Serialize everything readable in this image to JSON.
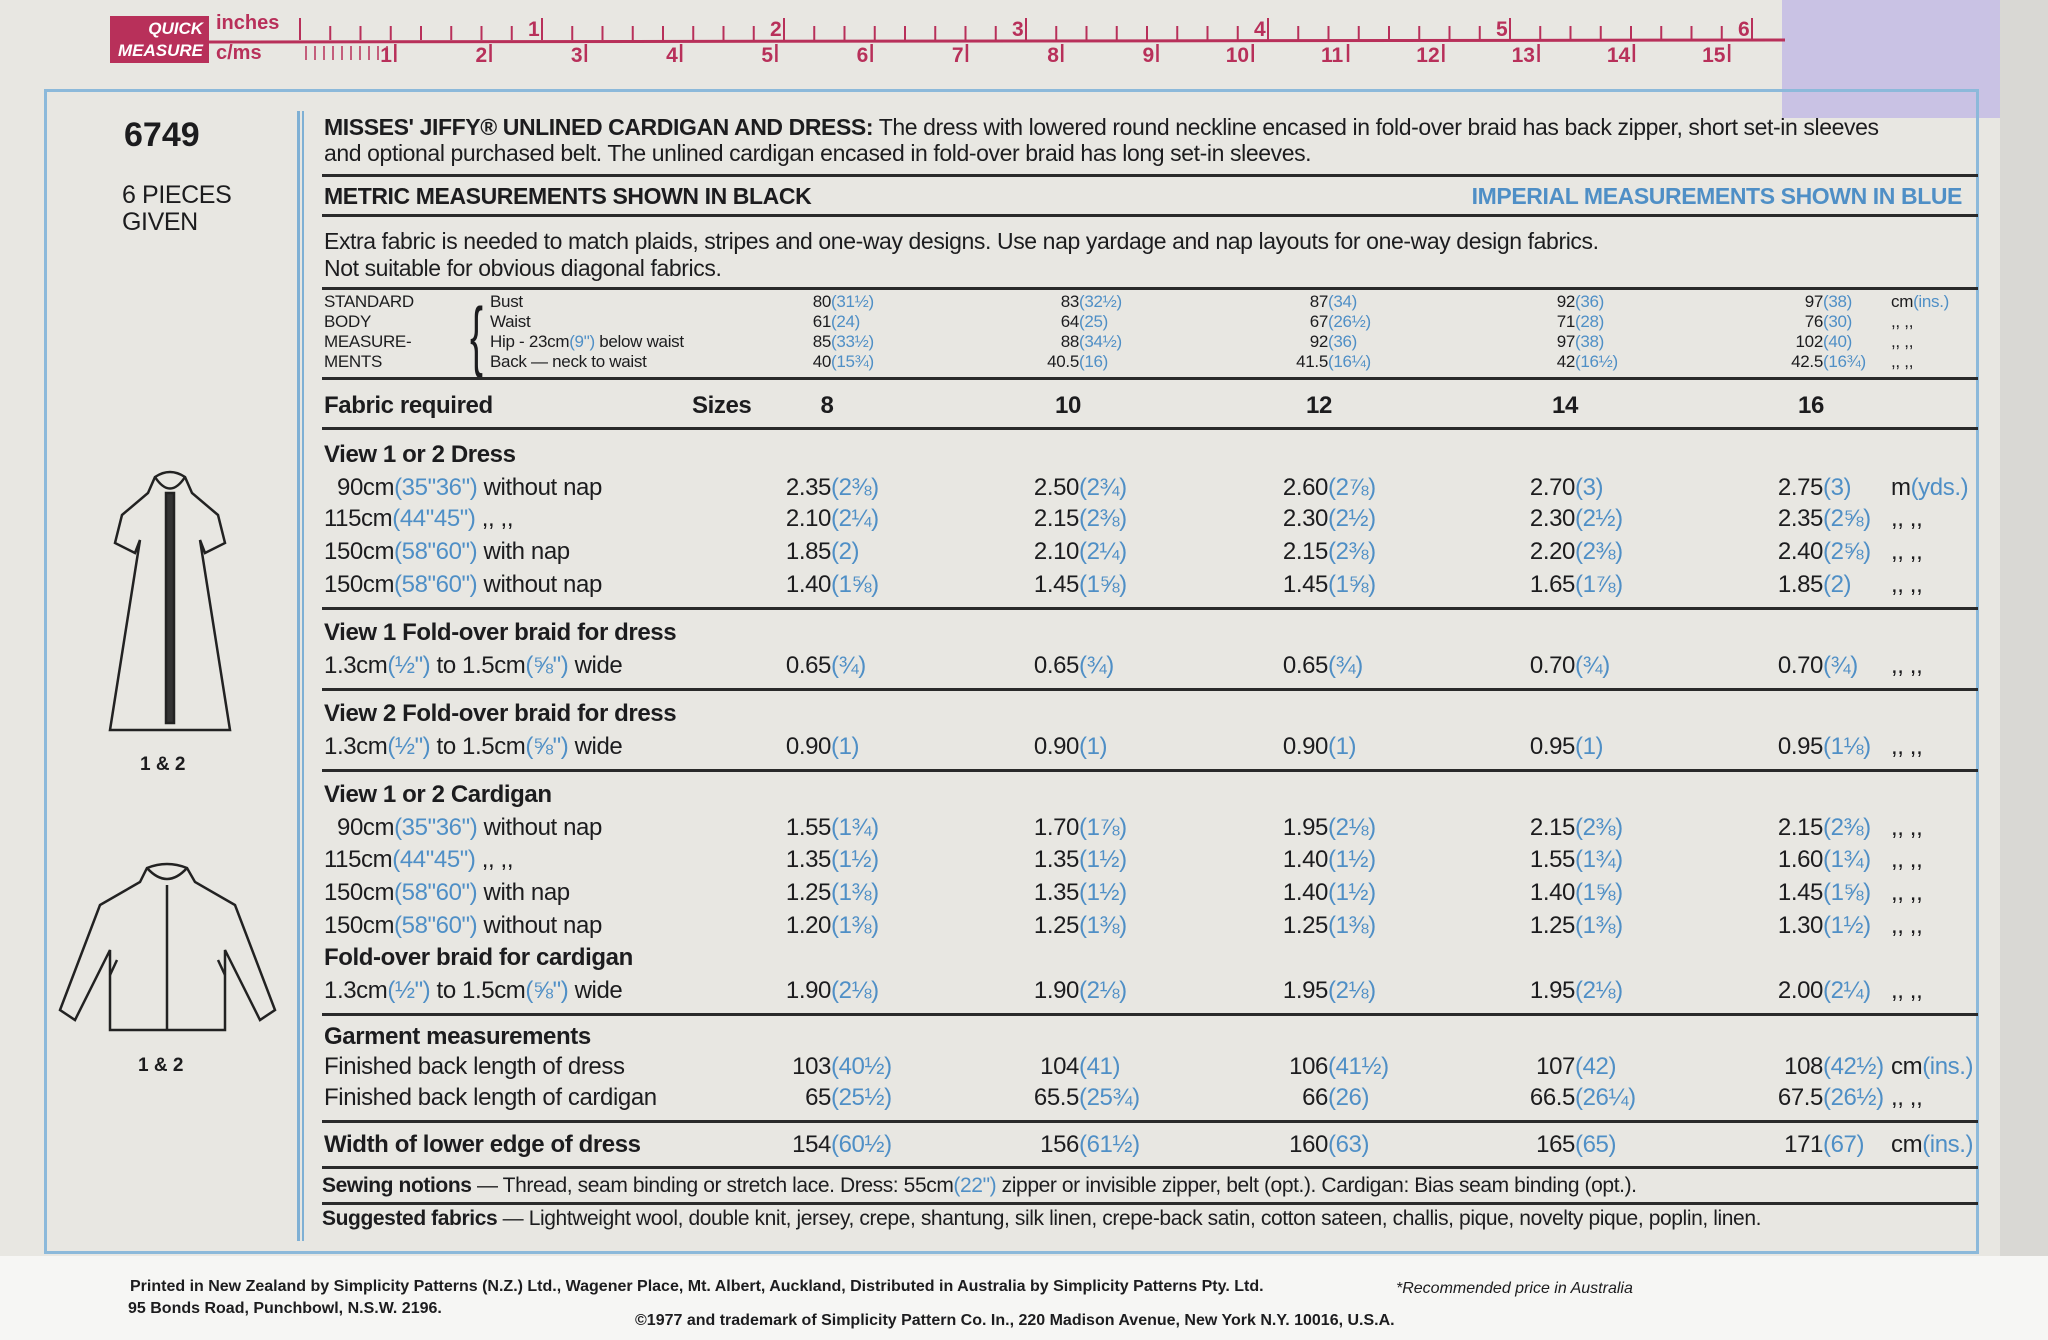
{
  "ruler": {
    "badge_top": "QUICK",
    "badge_bottom": "MEASURE",
    "inches_label": "inches",
    "cm_label": "c/ms",
    "inch_numbers": [
      "1",
      "2",
      "3",
      "4",
      "5",
      "6"
    ],
    "cm_numbers": [
      "1",
      "2",
      "3",
      "4",
      "5",
      "6",
      "7",
      "8",
      "9",
      "10",
      "11",
      "12",
      "13",
      "14",
      "15"
    ],
    "color": "#b8305a"
  },
  "left": {
    "pattern_number": "6749",
    "pieces_line1": "6 PIECES",
    "pieces_line2": "GIVEN",
    "dress_caption": "1 & 2",
    "cardigan_caption": "1 & 2"
  },
  "header": {
    "title_bold": "MISSES' JIFFY® UNLINED CARDIGAN AND DRESS:",
    "title_rest": " The dress with lowered round neckline encased in fold-over braid has back zipper, short set-in sleeves",
    "title_line2": "and optional purchased belt. The unlined cardigan encased in fold-over braid has long set-in sleeves.",
    "metric_note": "METRIC MEASUREMENTS SHOWN IN BLACK",
    "imperial_note": "IMPERIAL MEASUREMENTS SHOWN IN BLUE",
    "extra_line1": "Extra fabric is needed to match plaids, stripes and one-way designs. Use nap yardage and nap layouts for one-way design fabrics.",
    "extra_line2": "Not suitable for obvious diagonal fabrics."
  },
  "body_measurements": {
    "heading": [
      "STANDARD",
      "BODY",
      "MEASURE-",
      "MENTS"
    ],
    "rows": [
      {
        "label": [
          [
            "Bust",
            ""
          ]
        ],
        "values": [
          [
            "80",
            "(31½)"
          ],
          [
            "83",
            "(32½)"
          ],
          [
            "87",
            "(34)"
          ],
          [
            "92",
            "(36)"
          ],
          [
            "97",
            "(38)"
          ]
        ],
        "unit": [
          [
            "cm",
            ""
          ],
          [
            "(ins.)",
            "b"
          ]
        ]
      },
      {
        "label": [
          [
            "Waist",
            ""
          ]
        ],
        "values": [
          [
            "61",
            "(24)"
          ],
          [
            "64",
            "(25)"
          ],
          [
            "67",
            "(26½)"
          ],
          [
            "71",
            "(28)"
          ],
          [
            "76",
            "(30)"
          ]
        ],
        "unit": [
          [
            ",, ,,",
            ""
          ]
        ]
      },
      {
        "label": [
          [
            "Hip - 23cm",
            ""
          ],
          [
            "(9\")",
            "b"
          ],
          [
            " below waist",
            ""
          ]
        ],
        "values": [
          [
            "85",
            "(33½)"
          ],
          [
            "88",
            "(34½)"
          ],
          [
            "92",
            "(36)"
          ],
          [
            "97",
            "(38)"
          ],
          [
            "102",
            "(40)"
          ]
        ],
        "unit": [
          [
            ",, ,,",
            ""
          ]
        ]
      },
      {
        "label": [
          [
            "Back — neck to waist",
            ""
          ]
        ],
        "values": [
          [
            "40",
            "(15¾)"
          ],
          [
            "40.5",
            "(16)"
          ],
          [
            "41.5",
            "(16¼)"
          ],
          [
            "42",
            "(16½)"
          ],
          [
            "42.5",
            "(16¾)"
          ]
        ],
        "unit": [
          [
            ",, ,,",
            ""
          ]
        ]
      }
    ]
  },
  "fabric_header": {
    "label": "Fabric required",
    "sizes_label": "Sizes",
    "sizes": [
      "8",
      "10",
      "12",
      "14",
      "16"
    ]
  },
  "sections": [
    {
      "title": "View 1 or 2  Dress",
      "rows": [
        {
          "label": [
            [
              "90cm",
              ""
            ],
            [
              "(35\"36\")",
              "b"
            ],
            [
              " without nap",
              ""
            ]
          ],
          "indent": true,
          "values": [
            [
              "2.35",
              "(2⅜)"
            ],
            [
              "2.50",
              "(2¾)"
            ],
            [
              "2.60",
              "(2⅞)"
            ],
            [
              "2.70",
              "(3)"
            ],
            [
              "2.75",
              "(3)"
            ]
          ],
          "unit": [
            [
              "m",
              ""
            ],
            [
              "(yds.)",
              "b"
            ]
          ]
        },
        {
          "label": [
            [
              "115cm",
              ""
            ],
            [
              "(44\"45\")",
              "b"
            ],
            [
              "      ,,      ,,",
              ""
            ]
          ],
          "values": [
            [
              "2.10",
              "(2¼)"
            ],
            [
              "2.15",
              "(2⅜)"
            ],
            [
              "2.30",
              "(2½)"
            ],
            [
              "2.30",
              "(2½)"
            ],
            [
              "2.35",
              "(2⅝)"
            ]
          ],
          "unit": [
            [
              ",, ,,",
              ""
            ]
          ]
        },
        {
          "label": [
            [
              "150cm",
              ""
            ],
            [
              "(58\"60\")",
              "b"
            ],
            [
              " with nap",
              ""
            ]
          ],
          "values": [
            [
              "1.85",
              "(2)"
            ],
            [
              "2.10",
              "(2¼)"
            ],
            [
              "2.15",
              "(2⅜)"
            ],
            [
              "2.20",
              "(2⅜)"
            ],
            [
              "2.40",
              "(2⅝)"
            ]
          ],
          "unit": [
            [
              ",, ,,",
              ""
            ]
          ]
        },
        {
          "label": [
            [
              "150cm",
              ""
            ],
            [
              "(58\"60\")",
              "b"
            ],
            [
              " without nap",
              ""
            ]
          ],
          "values": [
            [
              "1.40",
              "(1⅝)"
            ],
            [
              "1.45",
              "(1⅝)"
            ],
            [
              "1.45",
              "(1⅝)"
            ],
            [
              "1.65",
              "(1⅞)"
            ],
            [
              "1.85",
              "(2)"
            ]
          ],
          "unit": [
            [
              ",, ,,",
              ""
            ]
          ]
        }
      ]
    },
    {
      "title": "View 1  Fold-over braid for dress",
      "rows": [
        {
          "label": [
            [
              "1.3cm",
              ""
            ],
            [
              "(½\")",
              "b"
            ],
            [
              " to 1.5cm",
              ""
            ],
            [
              "(⅝\")",
              "b"
            ],
            [
              " wide",
              ""
            ]
          ],
          "values": [
            [
              "0.65",
              "(¾)"
            ],
            [
              "0.65",
              "(¾)"
            ],
            [
              "0.65",
              "(¾)"
            ],
            [
              "0.70",
              "(¾)"
            ],
            [
              "0.70",
              "(¾)"
            ]
          ],
          "unit": [
            [
              ",, ,,",
              ""
            ]
          ]
        }
      ]
    },
    {
      "title": "View 2  Fold-over braid for dress",
      "rows": [
        {
          "label": [
            [
              "1.3cm",
              ""
            ],
            [
              "(½\")",
              "b"
            ],
            [
              " to 1.5cm",
              ""
            ],
            [
              "(⅝\")",
              "b"
            ],
            [
              " wide",
              ""
            ]
          ],
          "values": [
            [
              "0.90",
              "(1)"
            ],
            [
              "0.90",
              "(1)"
            ],
            [
              "0.90",
              "(1)"
            ],
            [
              "0.95",
              "(1)"
            ],
            [
              "0.95",
              "(1⅛)"
            ]
          ],
          "unit": [
            [
              ",, ,,",
              ""
            ]
          ]
        }
      ]
    },
    {
      "title": "View 1 or 2  Cardigan",
      "rows": [
        {
          "label": [
            [
              "90cm",
              ""
            ],
            [
              "(35\"36\")",
              "b"
            ],
            [
              " without nap",
              ""
            ]
          ],
          "indent": true,
          "values": [
            [
              "1.55",
              "(1¾)"
            ],
            [
              "1.70",
              "(1⅞)"
            ],
            [
              "1.95",
              "(2⅛)"
            ],
            [
              "2.15",
              "(2⅜)"
            ],
            [
              "2.15",
              "(2⅜)"
            ]
          ],
          "unit": [
            [
              ",, ,,",
              ""
            ]
          ]
        },
        {
          "label": [
            [
              "115cm",
              ""
            ],
            [
              "(44\"45\")",
              "b"
            ],
            [
              "      ,,      ,,",
              ""
            ]
          ],
          "values": [
            [
              "1.35",
              "(1½)"
            ],
            [
              "1.35",
              "(1½)"
            ],
            [
              "1.40",
              "(1½)"
            ],
            [
              "1.55",
              "(1¾)"
            ],
            [
              "1.60",
              "(1¾)"
            ]
          ],
          "unit": [
            [
              ",, ,,",
              ""
            ]
          ]
        },
        {
          "label": [
            [
              "150cm",
              ""
            ],
            [
              "(58\"60\")",
              "b"
            ],
            [
              " with nap",
              ""
            ]
          ],
          "values": [
            [
              "1.25",
              "(1⅜)"
            ],
            [
              "1.35",
              "(1½)"
            ],
            [
              "1.40",
              "(1½)"
            ],
            [
              "1.40",
              "(1⅝)"
            ],
            [
              "1.45",
              "(1⅝)"
            ]
          ],
          "unit": [
            [
              ",, ,,",
              ""
            ]
          ]
        },
        {
          "label": [
            [
              "150cm",
              ""
            ],
            [
              "(58\"60\")",
              "b"
            ],
            [
              " without nap",
              ""
            ]
          ],
          "values": [
            [
              "1.20",
              "(1⅜)"
            ],
            [
              "1.25",
              "(1⅜)"
            ],
            [
              "1.25",
              "(1⅜)"
            ],
            [
              "1.25",
              "(1⅜)"
            ],
            [
              "1.30",
              "(1½)"
            ]
          ],
          "unit": [
            [
              ",, ,,",
              ""
            ]
          ]
        }
      ]
    },
    {
      "title": "Fold-over braid for cardigan",
      "rows": [
        {
          "label": [
            [
              "1.3cm",
              ""
            ],
            [
              "(½\")",
              "b"
            ],
            [
              " to 1.5cm",
              ""
            ],
            [
              "(⅝\")",
              "b"
            ],
            [
              " wide",
              ""
            ]
          ],
          "values": [
            [
              "1.90",
              "(2⅛)"
            ],
            [
              "1.90",
              "(2⅛)"
            ],
            [
              "1.95",
              "(2⅛)"
            ],
            [
              "1.95",
              "(2⅛)"
            ],
            [
              "2.00",
              "(2¼)"
            ]
          ],
          "unit": [
            [
              ",, ,,",
              ""
            ]
          ]
        }
      ]
    },
    {
      "title": "Garment measurements",
      "rows": [
        {
          "label": [
            [
              "Finished back length of dress",
              ""
            ]
          ],
          "values": [
            [
              "103",
              "(40½)"
            ],
            [
              "104",
              "(41)"
            ],
            [
              "106",
              "(41½)"
            ],
            [
              "107",
              "(42)"
            ],
            [
              "108",
              "(42½)"
            ]
          ],
          "unit": [
            [
              "cm",
              ""
            ],
            [
              "(ins.)",
              "b"
            ]
          ]
        },
        {
          "label": [
            [
              "Finished back length of cardigan",
              ""
            ]
          ],
          "values": [
            [
              "65",
              "(25½)"
            ],
            [
              "65.5",
              "(25¾)"
            ],
            [
              "66",
              "(26)"
            ],
            [
              "66.5",
              "(26¼)"
            ],
            [
              "67.5",
              "(26½)"
            ]
          ],
          "unit": [
            [
              ",, ,,",
              ""
            ]
          ]
        }
      ]
    },
    {
      "title": "",
      "rows": [
        {
          "label": [
            [
              "Width of lower edge of dress",
              ""
            ]
          ],
          "bold": true,
          "values": [
            [
              "154",
              "(60½)"
            ],
            [
              "156",
              "(61½)"
            ],
            [
              "160",
              "(63)"
            ],
            [
              "165",
              "(65)"
            ],
            [
              "171",
              "(67)"
            ]
          ],
          "unit": [
            [
              "cm",
              ""
            ],
            [
              "(ins.)",
              "b"
            ]
          ]
        }
      ]
    }
  ],
  "notions": {
    "label": "Sewing notions",
    "text_a": " — Thread, seam binding or stretch lace. Dress: 55cm",
    "text_blue": "(22\")",
    "text_b": " zipper or invisible zipper, belt (opt.). Cardigan: Bias seam binding (opt.)."
  },
  "suggested": {
    "label": "Suggested fabrics",
    "text": " — Lightweight wool, double knit, jersey, crepe, shantung, silk linen, crepe-back satin, cotton sateen, challis, pique, novelty pique, poplin, linen."
  },
  "footer": {
    "line1": "Printed in New Zealand by Simplicity Patterns (N.Z.) Ltd., Wagener Place, Mt. Albert, Auckland, Distributed in Australia by Simplicity Patterns Pty. Ltd.",
    "line2": "95 Bonds Road, Punchbowl, N.S.W. 2196.",
    "copyright": "©1977 and trademark of Simplicity Pattern Co. In., 220 Madison Avenue, New York N.Y. 10016, U.S.A.",
    "price_note": "*Recommended price in Australia"
  }
}
